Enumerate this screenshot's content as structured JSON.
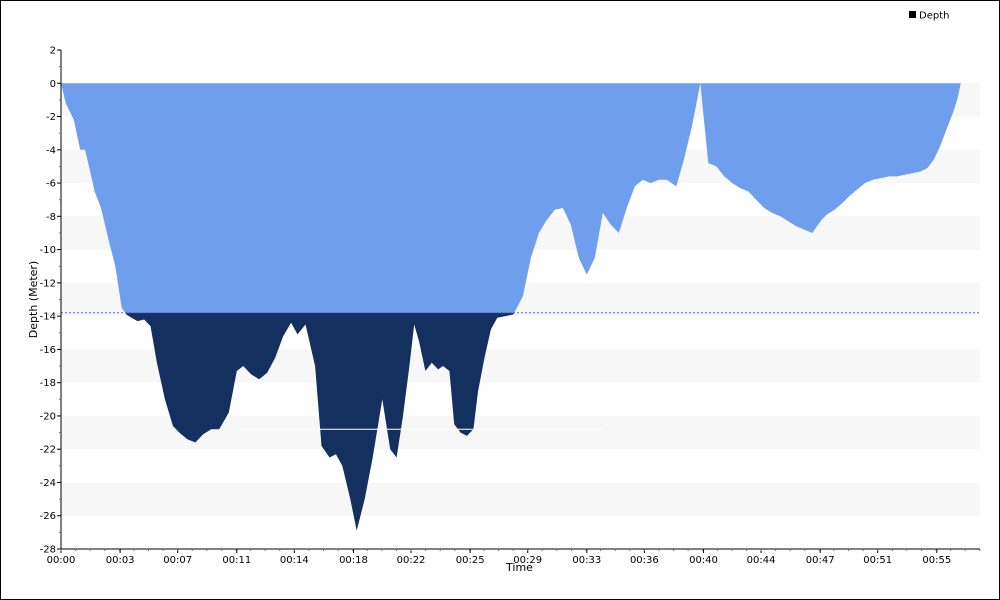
{
  "chart_data": {
    "type": "area",
    "title": "",
    "xlabel": "Time",
    "ylabel": "Depth (Meter)",
    "xlim": [
      0,
      57.5
    ],
    "ylim": [
      -28,
      2
    ],
    "y_ticks": [
      2,
      0,
      -2,
      -4,
      -6,
      -8,
      -10,
      -12,
      -14,
      -16,
      -18,
      -20,
      -22,
      -24,
      -26,
      -28
    ],
    "x_ticks": [
      {
        "value": 0,
        "label": "00:00"
      },
      {
        "value": 3.7,
        "label": "00:03"
      },
      {
        "value": 7.3,
        "label": "00:07"
      },
      {
        "value": 11.0,
        "label": "00:11"
      },
      {
        "value": 14.6,
        "label": "00:14"
      },
      {
        "value": 18.3,
        "label": "00:18"
      },
      {
        "value": 21.9,
        "label": "00:22"
      },
      {
        "value": 25.6,
        "label": "00:25"
      },
      {
        "value": 29.2,
        "label": "00:29"
      },
      {
        "value": 32.9,
        "label": "00:33"
      },
      {
        "value": 36.5,
        "label": "00:36"
      },
      {
        "value": 40.2,
        "label": "00:40"
      },
      {
        "value": 43.8,
        "label": "00:44"
      },
      {
        "value": 47.5,
        "label": "00:47"
      },
      {
        "value": 51.1,
        "label": "00:51"
      },
      {
        "value": 54.8,
        "label": "00:55"
      }
    ],
    "legend": {
      "position": "top-right",
      "entries": [
        "Depth"
      ]
    },
    "colors": {
      "surface_fill": "#6f9fec",
      "deep_fill": "#14305e",
      "threshold_line": "#5a5aff",
      "band": "#f7f7f7"
    },
    "threshold_depth": -13.8,
    "marker_line": {
      "x_start": 11.2,
      "x_end": 34.0,
      "depth": -20.8
    },
    "series": [
      {
        "name": "Depth",
        "x": [
          0,
          0.3,
          0.8,
          1.2,
          1.5,
          1.8,
          2.1,
          2.5,
          3.0,
          3.4,
          3.8,
          4.1,
          4.4,
          4.8,
          5.2,
          5.6,
          6.0,
          6.5,
          7.0,
          7.4,
          7.9,
          8.4,
          8.9,
          9.4,
          9.9,
          10.5,
          11.0,
          11.4,
          11.9,
          12.4,
          12.9,
          13.4,
          13.9,
          14.4,
          14.8,
          15.3,
          15.9,
          16.3,
          16.8,
          17.2,
          17.6,
          18.1,
          18.5,
          19.0,
          19.5,
          20.1,
          20.6,
          21.0,
          21.4,
          21.8,
          22.1,
          22.4,
          22.8,
          23.2,
          23.6,
          23.9,
          24.3,
          24.6,
          25.0,
          25.4,
          25.8,
          26.1,
          26.5,
          26.9,
          27.3,
          27.8,
          28.3,
          28.9,
          29.4,
          29.9,
          30.4,
          30.9,
          31.4,
          31.9,
          32.4,
          32.9,
          33.4,
          33.9,
          34.4,
          34.9,
          35.4,
          35.9,
          36.4,
          36.9,
          37.4,
          37.9,
          38.5,
          39.0,
          39.5,
          40.0,
          40.5,
          41.0,
          41.5,
          42.0,
          42.5,
          43.0,
          43.5,
          44.0,
          44.5,
          45.0,
          45.5,
          46.0,
          46.5,
          47.0,
          47.3,
          47.6,
          47.9,
          48.4,
          48.9,
          49.3,
          49.8,
          50.3,
          50.8,
          51.3,
          51.8,
          52.3,
          52.8,
          53.3,
          53.8,
          54.2,
          54.6,
          55.0,
          55.4,
          55.8,
          56.1,
          56.3
        ],
        "y": [
          0,
          -1.2,
          -2.2,
          -4.0,
          -4.0,
          -5.2,
          -6.5,
          -7.5,
          -9.5,
          -11.0,
          -13.5,
          -13.9,
          -14.1,
          -14.3,
          -14.2,
          -14.6,
          -16.8,
          -19.0,
          -20.6,
          -21.0,
          -21.4,
          -21.6,
          -21.1,
          -20.8,
          -20.8,
          -19.8,
          -17.3,
          -17.0,
          -17.5,
          -17.8,
          -17.4,
          -16.5,
          -15.2,
          -14.4,
          -15.1,
          -14.5,
          -17.0,
          -21.8,
          -22.5,
          -22.3,
          -23.0,
          -25.0,
          -26.9,
          -25.0,
          -22.5,
          -19.0,
          -22.0,
          -22.5,
          -20.0,
          -17.0,
          -14.5,
          -15.5,
          -17.3,
          -16.8,
          -17.2,
          -17.0,
          -17.3,
          -20.5,
          -21.0,
          -21.2,
          -20.8,
          -18.5,
          -16.5,
          -14.8,
          -14.1,
          -14.0,
          -13.9,
          -12.8,
          -10.5,
          -9.0,
          -8.2,
          -7.6,
          -7.5,
          -8.5,
          -10.5,
          -11.5,
          -10.5,
          -7.8,
          -8.5,
          -9.0,
          -7.5,
          -6.2,
          -5.8,
          -6.0,
          -5.8,
          -5.8,
          -6.2,
          -4.5,
          -2.5,
          0,
          -4.8,
          -5.0,
          -5.6,
          -6.0,
          -6.3,
          -6.5,
          -7.0,
          -7.5,
          -7.8,
          -8.0,
          -8.3,
          -8.6,
          -8.8,
          -9.0,
          -8.6,
          -8.2,
          -7.9,
          -7.6,
          -7.2,
          -6.8,
          -6.4,
          -6.0,
          -5.8,
          -5.7,
          -5.6,
          -5.6,
          -5.5,
          -5.4,
          -5.3,
          -5.1,
          -4.6,
          -3.8,
          -2.8,
          -1.8,
          -0.9,
          0
        ]
      }
    ]
  }
}
